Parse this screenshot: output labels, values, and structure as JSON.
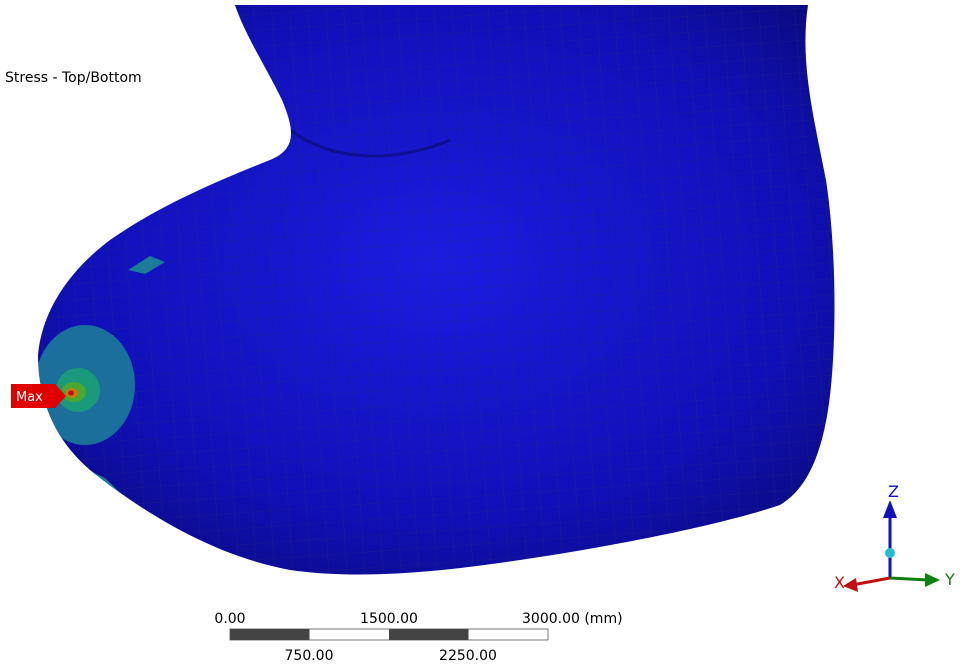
{
  "view_title": "Stress - Top/Bottom",
  "probe": {
    "label": "Max"
  },
  "scale_bar": {
    "top_labels": [
      "0.00",
      "1500.00",
      "3000.00 (mm)"
    ],
    "bottom_labels": [
      "750.00",
      "2250.00"
    ]
  },
  "triad": {
    "x": "X",
    "y": "Y",
    "z": "Z"
  }
}
